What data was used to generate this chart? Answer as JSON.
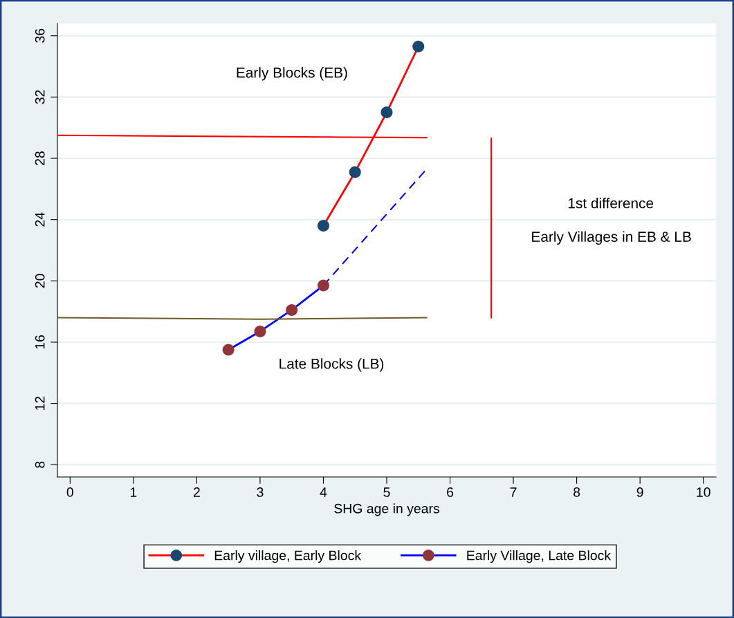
{
  "chart_data": {
    "type": "line",
    "xlabel": "SHG age in years",
    "xlim": [
      -0.2,
      10.2
    ],
    "xticks": [
      0,
      1,
      2,
      3,
      4,
      5,
      6,
      7,
      8,
      9,
      10
    ],
    "ylim": [
      7.2,
      36.8
    ],
    "yticks": [
      8,
      12,
      16,
      20,
      24,
      28,
      32,
      36
    ],
    "grid": "y",
    "legend": "bottom",
    "marker": "circle",
    "series": [
      {
        "name": "Early village, Early Block",
        "color": "#ff0000",
        "colors": [
          "#1a476f",
          "#1a476f",
          "#1a476f",
          "#1a476f"
        ],
        "x": [
          4,
          4.5,
          5,
          5.5
        ],
        "values": [
          23.6,
          27.1,
          31.0,
          35.3
        ]
      },
      {
        "name": "Early Village, Late Block",
        "color": "#0000ff",
        "colors": [
          "#90353b",
          "#90353b",
          "#90353b",
          "#90353b"
        ],
        "x": [
          2.5,
          3,
          3.5,
          4
        ],
        "values": [
          15.5,
          16.7,
          18.1,
          19.7
        ]
      },
      {
        "color": "#0000ff",
        "line_style": "dashed",
        "marker": "none",
        "x": [
          4,
          5.63
        ],
        "values": [
          19.7,
          27.3
        ]
      },
      {
        "color": "#ff0000",
        "marker": "none",
        "x": [
          -0.2,
          5.63
        ],
        "values": [
          29.5,
          29.35
        ]
      },
      {
        "color": "#6e5a2a",
        "marker": "none",
        "x": [
          -0.2,
          3.0,
          5.63
        ],
        "values": [
          17.6,
          17.5,
          17.6
        ]
      },
      {
        "color": "#ff0000",
        "marker": "none",
        "x": [
          6.65,
          6.65
        ],
        "values": [
          29.3,
          17.6
        ]
      }
    ],
    "annotations": [
      "Early Blocks (EB)",
      "Late Blocks (LB)",
      "1st difference",
      "Early Villages in EB & LB"
    ]
  }
}
